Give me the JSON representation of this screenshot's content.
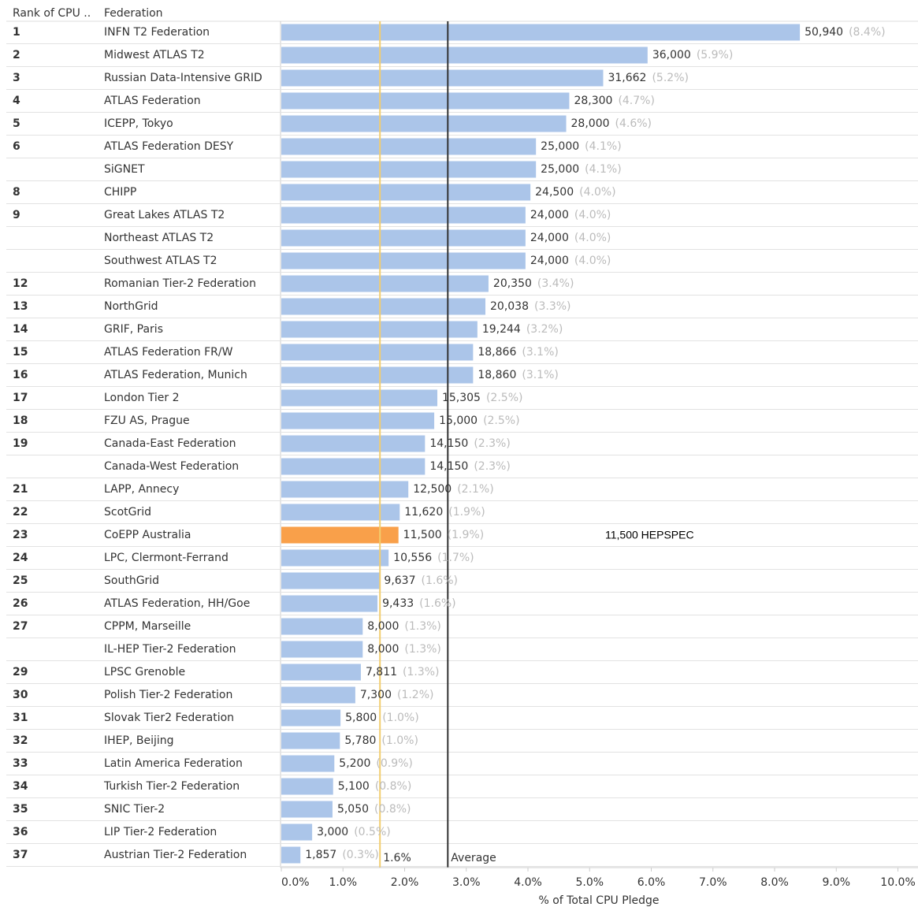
{
  "chart_data": {
    "type": "bar",
    "column_headers": [
      "Rank of CPU ..",
      "Federation"
    ],
    "x_label": "% of Total CPU Pledge",
    "ranks": [
      "1",
      "2",
      "3",
      "4",
      "5",
      "6",
      null,
      "8",
      "9",
      null,
      null,
      "12",
      "13",
      "14",
      "15",
      "16",
      "17",
      "18",
      "19",
      null,
      "21",
      "22",
      "23",
      "24",
      "25",
      "26",
      "27",
      null,
      "29",
      "30",
      "31",
      "32",
      "33",
      "34",
      "35",
      "36",
      "37"
    ],
    "categories": [
      "INFN T2 Federation",
      "Midwest ATLAS T2",
      "Russian Data-Intensive GRID",
      "ATLAS Federation",
      "ICEPP, Tokyo",
      "ATLAS Federation DESY",
      "SiGNET",
      "CHIPP",
      "Great Lakes ATLAS T2",
      "Northeast ATLAS T2",
      "Southwest ATLAS T2",
      "Romanian Tier-2 Federation",
      "NorthGrid",
      "GRIF, Paris",
      "ATLAS Federation FR/W",
      "ATLAS Federation, Munich",
      "London Tier 2",
      "FZU AS, Prague",
      "Canada-East Federation",
      "Canada-West Federation",
      "LAPP, Annecy",
      "ScotGrid",
      "CoEPP Australia",
      "LPC, Clermont-Ferrand",
      "SouthGrid",
      "ATLAS Federation, HH/Goe",
      "CPPM, Marseille",
      "IL-HEP Tier-2 Federation",
      "LPSC Grenoble",
      "Polish Tier-2 Federation",
      "Slovak Tier2 Federation",
      "IHEP, Beijing",
      "Latin America Federation",
      "Turkish Tier-2 Federation",
      "SNIC Tier-2",
      "LIP Tier-2 Federation",
      "Austrian Tier-2 Federation"
    ],
    "pledge_labels": [
      "50,940",
      "36,000",
      "31,662",
      "28,300",
      "28,000",
      "25,000",
      "25,000",
      "24,500",
      "24,000",
      "24,000",
      "24,000",
      "20,350",
      "20,038",
      "19,244",
      "18,866",
      "18,860",
      "15,305",
      "15,000",
      "14,150",
      "14,150",
      "12,500",
      "11,620",
      "11,500",
      "10,556",
      "9,637",
      "9,433",
      "8,000",
      "8,000",
      "7,811",
      "7,300",
      "5,800",
      "5,780",
      "5,200",
      "5,100",
      "5,050",
      "3,000",
      "1,857"
    ],
    "values": [
      8.41,
      5.94,
      5.22,
      4.67,
      4.62,
      4.13,
      4.13,
      4.04,
      3.96,
      3.96,
      3.96,
      3.36,
      3.31,
      3.18,
      3.11,
      3.11,
      2.53,
      2.48,
      2.33,
      2.33,
      2.06,
      1.92,
      1.9,
      1.74,
      1.59,
      1.56,
      1.32,
      1.32,
      1.29,
      1.2,
      0.96,
      0.95,
      0.86,
      0.84,
      0.83,
      0.5,
      0.31
    ],
    "value_labels": [
      "(8.4%)",
      "(5.9%)",
      "(5.2%)",
      "(4.7%)",
      "(4.6%)",
      "(4.1%)",
      "(4.1%)",
      "(4.0%)",
      "(4.0%)",
      "(4.0%)",
      "(4.0%)",
      "(3.4%)",
      "(3.3%)",
      "(3.2%)",
      "(3.1%)",
      "(3.1%)",
      "(2.5%)",
      "(2.5%)",
      "(2.3%)",
      "(2.3%)",
      "(2.1%)",
      "(1.9%)",
      "(1.9%)",
      "(1.7%)",
      "(1.6%)",
      "(1.6%)",
      "(1.3%)",
      "(1.3%)",
      "(1.3%)",
      "(1.2%)",
      "(1.0%)",
      "(1.0%)",
      "(0.9%)",
      "(0.8%)",
      "(0.8%)",
      "(0.5%)",
      "(0.3%)"
    ],
    "color": "#abc5e9",
    "highlight_color": "#f9a04a",
    "highlight_index": 22,
    "reference_lines": [
      {
        "value": 1.6,
        "label": "1.6%",
        "color": "#f2cd6e"
      },
      {
        "value": 2.7,
        "label": "Average",
        "color": "#333333"
      }
    ],
    "annotation": "11,500 HEPSPEC",
    "xlim": [
      0,
      10.3
    ],
    "xticks": [
      {
        "value": 0,
        "label": "0.0%"
      },
      {
        "value": 1,
        "label": "1.0%"
      },
      {
        "value": 2,
        "label": "2.0%"
      },
      {
        "value": 3,
        "label": "3.0%"
      },
      {
        "value": 4,
        "label": "4.0%"
      },
      {
        "value": 5,
        "label": "5.0%"
      },
      {
        "value": 6,
        "label": "6.0%"
      },
      {
        "value": 7,
        "label": "7.0%"
      },
      {
        "value": 8,
        "label": "8.0%"
      },
      {
        "value": 9,
        "label": "9.0%"
      },
      {
        "value": 10,
        "label": "10.0%"
      }
    ]
  }
}
